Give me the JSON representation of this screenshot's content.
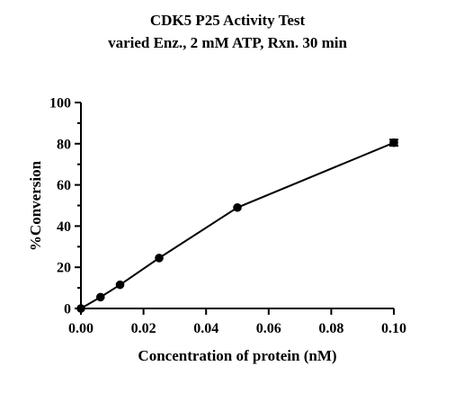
{
  "chart_data": {
    "type": "scatter",
    "title": "CDK5 P25 Activity Test",
    "subtitle": "varied Enz., 2 mM ATP, Rxn. 30 min",
    "xlabel": "Concentration of protein (nM)",
    "ylabel": "%Conversion",
    "xlim": [
      0,
      0.1
    ],
    "ylim": [
      0,
      100
    ],
    "x_ticks": [
      "0.00",
      "0.02",
      "0.04",
      "0.06",
      "0.08",
      "0.10"
    ],
    "y_ticks": [
      "0",
      "20",
      "40",
      "60",
      "80",
      "100"
    ],
    "grid": false,
    "legend": "none",
    "series": [
      {
        "x": [
          0,
          0.00625,
          0.0125,
          0.025,
          0.05,
          0.1
        ],
        "y": [
          0,
          5.5,
          11.5,
          24.5,
          49,
          80.5
        ],
        "y_error": [
          0,
          0,
          0,
          0,
          0,
          1.5
        ],
        "color": "#000000",
        "marker": "circle",
        "line": "solid"
      }
    ]
  }
}
